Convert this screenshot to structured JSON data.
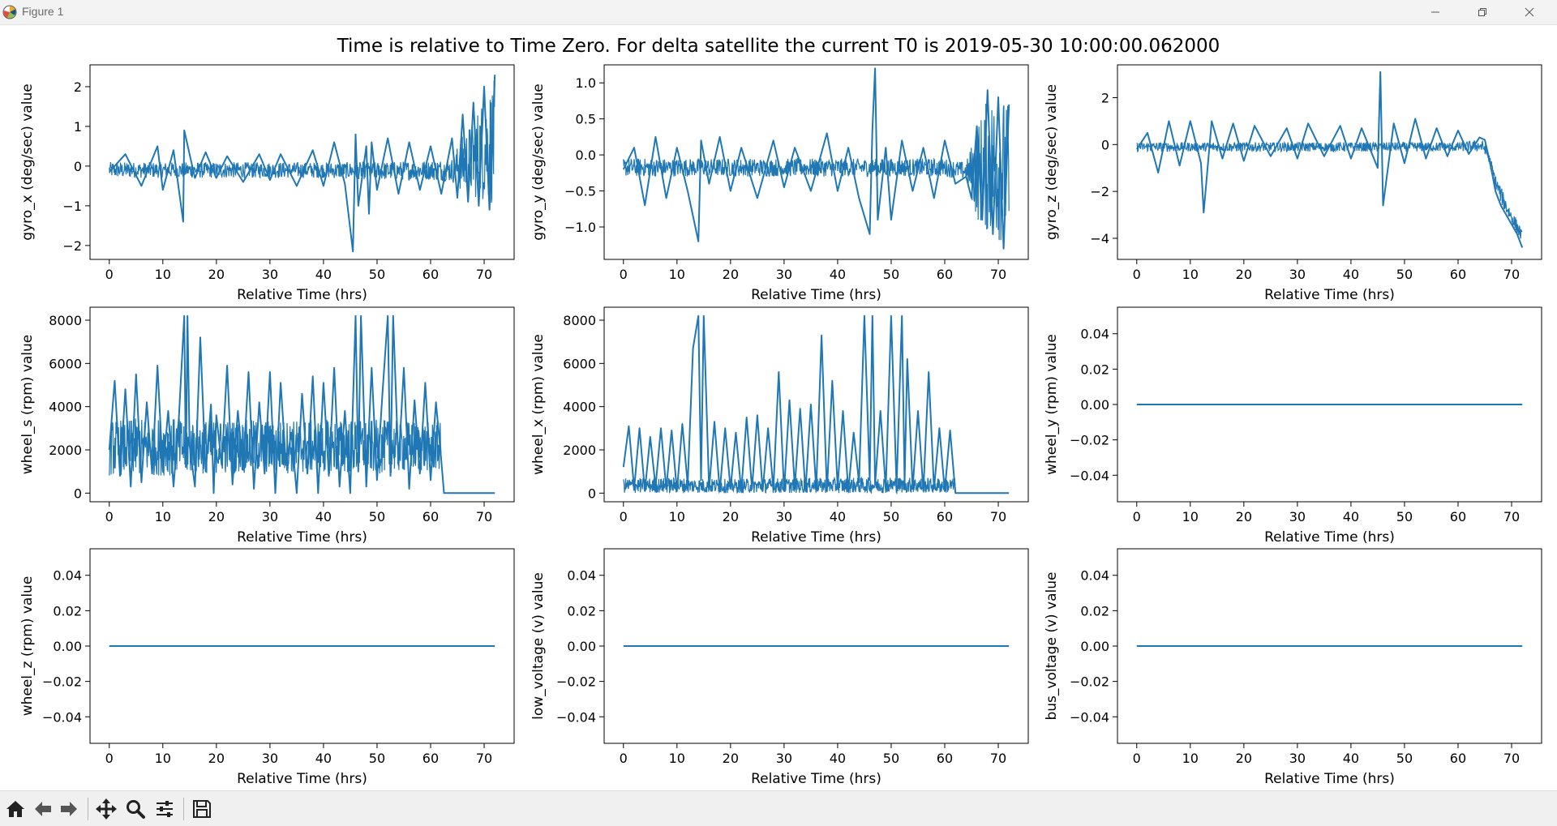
{
  "window": {
    "title": "Figure 1",
    "icons": [
      "matplotlib-icon",
      "minimize-icon",
      "maximize-icon",
      "close-icon"
    ]
  },
  "figure": {
    "suptitle": "Time is relative to Time Zero. For delta satellite the current T0 is 2019-05-30 10:00:00.062000"
  },
  "colors": {
    "line": "#1f77b4",
    "axes_edge": "#000000",
    "background": "#ffffff"
  },
  "toolbar": {
    "buttons": [
      "home-icon",
      "back-icon",
      "forward-icon",
      "pan-icon",
      "zoom-icon",
      "configure-subplots-icon",
      "save-icon"
    ]
  },
  "chart_data": [
    {
      "type": "line",
      "ylabel": "gyro_x (deg/sec) value",
      "xlabel": "Relative Time (hrs)",
      "xlim": [
        -3.6,
        75.6
      ],
      "ylim": [
        -2.35,
        2.55
      ],
      "xticks": [
        "0",
        "10",
        "20",
        "30",
        "40",
        "50",
        "60",
        "70"
      ],
      "yticks": [
        "−2",
        "−1",
        "0",
        "1",
        "2"
      ],
      "ytick_values": [
        -2,
        -1,
        0,
        1,
        2
      ],
      "series": [
        {
          "x": [
            0,
            3,
            6,
            9,
            10,
            12,
            13.8,
            14,
            16,
            18,
            20,
            22,
            25,
            28,
            30,
            32,
            35,
            38,
            40,
            42,
            44,
            45.5,
            46,
            46.5,
            48,
            48.5,
            49,
            50,
            52,
            54,
            56,
            58,
            60,
            62,
            64,
            65,
            66,
            67,
            68,
            69,
            70,
            71,
            72
          ],
          "y": [
            -0.15,
            0.3,
            -0.5,
            0.5,
            -0.6,
            0.4,
            -1.4,
            0.9,
            -0.3,
            0.35,
            -0.3,
            0.25,
            -0.4,
            0.3,
            -0.35,
            0.3,
            -0.5,
            0.4,
            -0.5,
            0.6,
            -0.45,
            -2.15,
            0.8,
            -1.0,
            0.5,
            -1.2,
            0.6,
            -0.6,
            0.7,
            -0.7,
            0.6,
            -0.6,
            0.5,
            -0.7,
            0.7,
            -0.8,
            1.3,
            -0.9,
            1.6,
            -1.0,
            2.0,
            -1.1,
            2.3
          ],
          "band": {
            "x": [
              0,
              10,
              20,
              30,
              40,
              50,
              60,
              64,
              66,
              68,
              70,
              72
            ],
            "lo": [
              -0.3,
              -0.3,
              -0.3,
              -0.3,
              -0.3,
              -0.35,
              -0.35,
              -0.4,
              -0.7,
              -0.8,
              -0.9,
              -1.0
            ],
            "hi": [
              0.1,
              0.1,
              0.1,
              0.1,
              0.1,
              0.1,
              0.15,
              0.2,
              0.8,
              1.2,
              1.8,
              2.2
            ]
          }
        }
      ]
    },
    {
      "type": "line",
      "ylabel": "gyro_y (deg/sec) value",
      "xlabel": "Relative Time (hrs)",
      "xlim": [
        -3.6,
        75.6
      ],
      "ylim": [
        -1.45,
        1.25
      ],
      "xticks": [
        "0",
        "10",
        "20",
        "30",
        "40",
        "50",
        "60",
        "70"
      ],
      "yticks": [
        "−1.0",
        "−0.5",
        "0.0",
        "0.5",
        "1.0"
      ],
      "ytick_values": [
        -1.0,
        -0.5,
        0.0,
        0.5,
        1.0
      ],
      "series": [
        {
          "x": [
            0,
            2,
            4,
            6,
            8,
            10,
            12,
            14,
            14.5,
            16,
            18,
            20,
            22,
            25,
            28,
            30,
            32,
            35,
            38,
            40,
            42,
            44,
            46,
            46.5,
            47,
            47.5,
            49,
            50,
            52,
            54,
            56,
            58,
            60,
            62,
            64,
            65,
            66,
            67,
            68,
            69,
            70,
            71,
            72
          ],
          "y": [
            -0.2,
            0.1,
            -0.7,
            0.25,
            -0.6,
            0.1,
            -0.5,
            -1.2,
            0.2,
            -0.4,
            0.25,
            -0.5,
            0.1,
            -0.6,
            0.2,
            -0.45,
            0.1,
            -0.5,
            0.3,
            -0.5,
            0.1,
            -0.6,
            -1.1,
            0.35,
            1.2,
            -0.9,
            0.1,
            -0.9,
            0.2,
            -0.5,
            0.1,
            -0.6,
            0.2,
            -0.4,
            -0.3,
            -0.6,
            0.4,
            -0.9,
            0.9,
            -1.1,
            0.8,
            -1.3,
            0.7
          ],
          "band": {
            "x": [
              0,
              10,
              20,
              30,
              40,
              50,
              60,
              64,
              66,
              68,
              70,
              72
            ],
            "lo": [
              -0.3,
              -0.3,
              -0.3,
              -0.3,
              -0.3,
              -0.3,
              -0.3,
              -0.35,
              -0.9,
              -1.1,
              -1.2,
              -1.3
            ],
            "hi": [
              -0.05,
              -0.05,
              -0.05,
              -0.05,
              -0.05,
              -0.05,
              -0.05,
              -0.1,
              0.4,
              0.8,
              0.9,
              0.7
            ]
          }
        }
      ]
    },
    {
      "type": "line",
      "ylabel": "gyro_z (deg/sec) value",
      "xlabel": "Relative Time (hrs)",
      "xlim": [
        -3.6,
        75.6
      ],
      "ylim": [
        -4.9,
        3.4
      ],
      "xticks": [
        "0",
        "10",
        "20",
        "30",
        "40",
        "50",
        "60",
        "70"
      ],
      "yticks": [
        "−4",
        "−2",
        "0",
        "2"
      ],
      "ytick_values": [
        -4,
        -2,
        0,
        2
      ],
      "series": [
        {
          "x": [
            0,
            2,
            4,
            6,
            8,
            10,
            12,
            12.5,
            14,
            16,
            18,
            20,
            22,
            25,
            28,
            30,
            32,
            35,
            38,
            40,
            42,
            45,
            45.5,
            46,
            48,
            50,
            52,
            54,
            56,
            58,
            60,
            62,
            64,
            65,
            66,
            67,
            68,
            69,
            70,
            71,
            72
          ],
          "y": [
            -0.2,
            0.5,
            -1.2,
            1.0,
            -0.9,
            1.0,
            -0.8,
            -2.9,
            1.0,
            -0.6,
            0.9,
            -0.7,
            0.8,
            -0.5,
            0.7,
            -0.6,
            0.9,
            -0.5,
            0.8,
            -0.6,
            0.7,
            -1.0,
            3.1,
            -2.6,
            0.9,
            -0.8,
            1.1,
            -0.6,
            0.7,
            -0.5,
            0.6,
            -0.4,
            0.3,
            0.2,
            -0.8,
            -2.0,
            -2.6,
            -3.0,
            -3.4,
            -3.8,
            -4.4
          ],
          "band": {
            "x": [
              0,
              10,
              20,
              30,
              40,
              50,
              60,
              64,
              65,
              66,
              67,
              68,
              69,
              70,
              71,
              72
            ],
            "lo": [
              -0.3,
              -0.3,
              -0.3,
              -0.3,
              -0.3,
              -0.3,
              -0.3,
              -0.3,
              -0.4,
              -1.0,
              -1.9,
              -2.5,
              -3.0,
              -3.4,
              -3.8,
              -4.2
            ],
            "hi": [
              0.1,
              0.1,
              0.1,
              0.1,
              0.1,
              0.1,
              0.1,
              0.2,
              0.1,
              -0.5,
              -1.3,
              -1.8,
              -2.3,
              -2.8,
              -3.2,
              -3.7
            ]
          }
        }
      ]
    },
    {
      "type": "line",
      "ylabel": "wheel_s (rpm) value",
      "xlabel": "Relative Time (hrs)",
      "xlim": [
        -3.6,
        75.6
      ],
      "ylim": [
        -400,
        8600
      ],
      "xticks": [
        "0",
        "10",
        "20",
        "30",
        "40",
        "50",
        "60",
        "70"
      ],
      "yticks": [
        "0",
        "2000",
        "4000",
        "6000",
        "8000"
      ],
      "ytick_values": [
        0,
        2000,
        4000,
        6000,
        8000
      ],
      "series": [
        {
          "x": [
            0,
            1,
            2,
            3,
            4,
            5,
            6,
            7,
            8,
            9,
            10,
            11,
            12,
            13,
            14,
            14.3,
            14.6,
            15,
            16,
            17,
            18,
            19,
            19.5,
            20,
            21,
            22,
            23,
            24,
            25,
            26,
            27,
            28,
            29,
            30,
            31,
            32,
            33,
            34,
            35,
            36,
            37,
            38,
            39,
            40,
            41,
            42,
            43,
            44,
            45,
            46,
            46.5,
            47,
            48,
            49,
            50,
            51,
            52,
            52.5,
            53,
            54,
            55,
            56,
            57,
            58,
            59,
            60,
            61,
            62,
            62.5,
            72
          ],
          "y": [
            2000,
            5200,
            800,
            4800,
            300,
            5500,
            500,
            4200,
            900,
            5900,
            1000,
            3800,
            300,
            3500,
            8200,
            1200,
            8200,
            2200,
            300,
            7200,
            1000,
            4100,
            0,
            3600,
            1300,
            5900,
            400,
            3800,
            1200,
            5600,
            200,
            4200,
            900,
            5600,
            0,
            5100,
            1300,
            2800,
            0,
            4600,
            900,
            5400,
            0,
            5100,
            800,
            5800,
            300,
            3800,
            0,
            8200,
            1000,
            8200,
            300,
            5800,
            600,
            4600,
            8200,
            800,
            8200,
            1300,
            5800,
            200,
            4300,
            900,
            5100,
            600,
            4200,
            1500,
            0,
            0
          ],
          "band": {
            "x": [
              0,
              10,
              20,
              30,
              40,
              50,
              60,
              62
            ],
            "lo": [
              800,
              800,
              900,
              900,
              900,
              900,
              1000,
              1000
            ],
            "hi": [
              3400,
              3500,
              3400,
              3400,
              3400,
              3400,
              3300,
              3300
            ]
          }
        }
      ]
    },
    {
      "type": "line",
      "ylabel": "wheel_x (rpm) value",
      "xlabel": "Relative Time (hrs)",
      "xlim": [
        -3.6,
        75.6
      ],
      "ylim": [
        -400,
        8600
      ],
      "xticks": [
        "0",
        "10",
        "20",
        "30",
        "40",
        "50",
        "60",
        "70"
      ],
      "yticks": [
        "0",
        "2000",
        "4000",
        "6000",
        "8000"
      ],
      "ytick_values": [
        0,
        2000,
        4000,
        6000,
        8000
      ],
      "series": [
        {
          "x": [
            0,
            1,
            2,
            3,
            4,
            5,
            6,
            7,
            8,
            9,
            10,
            11,
            12,
            13,
            14,
            14.5,
            15,
            16,
            17,
            18,
            19,
            20,
            21,
            22,
            23,
            24,
            25,
            26,
            27,
            28,
            29,
            30,
            31,
            32,
            33,
            34,
            35,
            36,
            37,
            38,
            39,
            40,
            41,
            42,
            43,
            44,
            45,
            46,
            46.5,
            47,
            48,
            49,
            50,
            51,
            52,
            52.5,
            53,
            54,
            55,
            56,
            57,
            58,
            59,
            60,
            61,
            62,
            62.5,
            72
          ],
          "y": [
            1200,
            3100,
            200,
            3000,
            100,
            2600,
            300,
            3000,
            200,
            2900,
            100,
            3200,
            400,
            6700,
            8200,
            600,
            8200,
            200,
            3300,
            100,
            3000,
            200,
            2800,
            100,
            3500,
            200,
            3600,
            100,
            3000,
            200,
            5600,
            100,
            4300,
            300,
            3900,
            100,
            4100,
            200,
            7300,
            100,
            5200,
            300,
            3800,
            100,
            2800,
            500,
            8200,
            600,
            8200,
            400,
            3800,
            200,
            8200,
            300,
            8200,
            500,
            6200,
            200,
            3800,
            100,
            5600,
            200,
            3000,
            100,
            2900,
            0,
            0,
            0
          ],
          "band": {
            "x": [
              0,
              10,
              20,
              30,
              40,
              50,
              60,
              62
            ],
            "lo": [
              0,
              0,
              0,
              0,
              0,
              0,
              0,
              0
            ],
            "hi": [
              700,
              700,
              650,
              700,
              700,
              750,
              700,
              700
            ]
          }
        }
      ]
    },
    {
      "type": "line",
      "ylabel": "wheel_y (rpm) value",
      "xlabel": "Relative Time (hrs)",
      "xlim": [
        -3.6,
        75.6
      ],
      "ylim": [
        -0.055,
        0.055
      ],
      "xticks": [
        "0",
        "10",
        "20",
        "30",
        "40",
        "50",
        "60",
        "70"
      ],
      "yticks": [
        "−0.04",
        "−0.02",
        "0.00",
        "0.02",
        "0.04"
      ],
      "ytick_values": [
        -0.04,
        -0.02,
        0.0,
        0.02,
        0.04
      ],
      "series": [
        {
          "x": [
            0,
            72
          ],
          "y": [
            0,
            0
          ]
        }
      ]
    },
    {
      "type": "line",
      "ylabel": "wheel_z (rpm) value",
      "xlabel": "Relative Time (hrs)",
      "xlim": [
        -3.6,
        75.6
      ],
      "ylim": [
        -0.055,
        0.055
      ],
      "xticks": [
        "0",
        "10",
        "20",
        "30",
        "40",
        "50",
        "60",
        "70"
      ],
      "yticks": [
        "−0.04",
        "−0.02",
        "0.00",
        "0.02",
        "0.04"
      ],
      "ytick_values": [
        -0.04,
        -0.02,
        0.0,
        0.02,
        0.04
      ],
      "series": [
        {
          "x": [
            0,
            72
          ],
          "y": [
            0,
            0
          ]
        }
      ]
    },
    {
      "type": "line",
      "ylabel": "low_voltage (v) value",
      "xlabel": "Relative Time (hrs)",
      "xlim": [
        -3.6,
        75.6
      ],
      "ylim": [
        -0.055,
        0.055
      ],
      "xticks": [
        "0",
        "10",
        "20",
        "30",
        "40",
        "50",
        "60",
        "70"
      ],
      "yticks": [
        "−0.04",
        "−0.02",
        "0.00",
        "0.02",
        "0.04"
      ],
      "ytick_values": [
        -0.04,
        -0.02,
        0.0,
        0.02,
        0.04
      ],
      "series": [
        {
          "x": [
            0,
            72
          ],
          "y": [
            0,
            0
          ]
        }
      ]
    },
    {
      "type": "line",
      "ylabel": "bus_voltage (v) value",
      "xlabel": "Relative Time (hrs)",
      "xlim": [
        -3.6,
        75.6
      ],
      "ylim": [
        -0.055,
        0.055
      ],
      "xticks": [
        "0",
        "10",
        "20",
        "30",
        "40",
        "50",
        "60",
        "70"
      ],
      "yticks": [
        "−0.04",
        "−0.02",
        "0.00",
        "0.02",
        "0.04"
      ],
      "ytick_values": [
        -0.04,
        -0.02,
        0.0,
        0.02,
        0.04
      ],
      "series": [
        {
          "x": [
            0,
            72
          ],
          "y": [
            0,
            0
          ]
        }
      ]
    }
  ]
}
